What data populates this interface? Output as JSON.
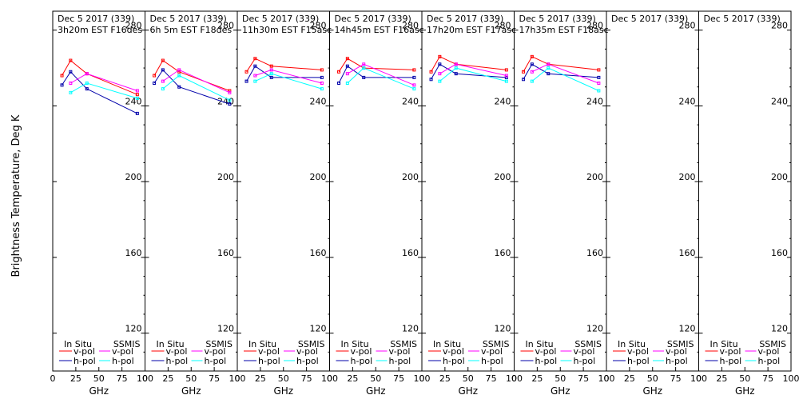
{
  "ylabel": "Brightness Temperature, Deg K",
  "colors": {
    "insitu_v": "#ff0000",
    "insitu_h": "#0000aa",
    "ssmis_v": "#ff00ff",
    "ssmis_h": "#00ffff",
    "axis": "#000000"
  },
  "legend": {
    "insitu": "In Situ",
    "ssmis": "SSMIS",
    "vpol": "v-pol",
    "hpol": "h-pol"
  },
  "chart_data": [
    {
      "type": "line",
      "title": "Dec 5 2017 (339)",
      "subtitle": "3h20m  EST  F16des",
      "xlabel": "GHz",
      "xticks": [
        0,
        25,
        50,
        75,
        100
      ],
      "xlim": [
        0,
        100
      ],
      "ylim": [
        100,
        290
      ],
      "yticks": [
        120,
        160,
        200,
        240,
        280
      ],
      "series": [
        {
          "name": "In Situ v-pol",
          "x": [
            10,
            19.35,
            37,
            91.65
          ],
          "values": [
            256,
            264,
            257,
            246
          ]
        },
        {
          "name": "In Situ h-pol",
          "x": [
            10,
            19.35,
            37,
            91.65
          ],
          "values": [
            251,
            258,
            249,
            236
          ]
        },
        {
          "name": "SSMIS v-pol",
          "x": [
            19.35,
            37,
            91.65
          ],
          "values": [
            252,
            257,
            248
          ]
        },
        {
          "name": "SSMIS h-pol",
          "x": [
            19.35,
            37,
            91.65
          ],
          "values": [
            247,
            252,
            244
          ]
        }
      ]
    },
    {
      "type": "line",
      "title": "Dec 5 2017 (339)",
      "subtitle": "6h 5m  EST  F18des",
      "xlabel": "GHz",
      "xticks": [
        0,
        25,
        50,
        75,
        100
      ],
      "xlim": [
        0,
        100
      ],
      "ylim": [
        100,
        290
      ],
      "yticks": [
        120,
        160,
        200,
        240,
        280
      ],
      "series": [
        {
          "name": "In Situ v-pol",
          "x": [
            10,
            19.35,
            37,
            91.65
          ],
          "values": [
            256,
            264,
            258,
            248
          ]
        },
        {
          "name": "In Situ h-pol",
          "x": [
            10,
            19.35,
            37,
            91.65
          ],
          "values": [
            252,
            259,
            250,
            241
          ]
        },
        {
          "name": "SSMIS v-pol",
          "x": [
            19.35,
            37,
            91.65
          ],
          "values": [
            253,
            259,
            247
          ]
        },
        {
          "name": "SSMIS h-pol",
          "x": [
            19.35,
            37,
            91.65
          ],
          "values": [
            249,
            256,
            243
          ]
        }
      ]
    },
    {
      "type": "line",
      "title": "Dec 5 2017 (339)",
      "subtitle": "11h30m  EST  F15asc",
      "xlabel": "GHz",
      "xticks": [
        0,
        25,
        50,
        75,
        100
      ],
      "xlim": [
        0,
        100
      ],
      "ylim": [
        100,
        290
      ],
      "yticks": [
        120,
        160,
        200,
        240,
        280
      ],
      "series": [
        {
          "name": "In Situ v-pol",
          "x": [
            10,
            19.35,
            37,
            91.65
          ],
          "values": [
            258,
            265,
            261,
            259
          ]
        },
        {
          "name": "In Situ h-pol",
          "x": [
            10,
            19.35,
            37,
            91.65
          ],
          "values": [
            253,
            261,
            255,
            255
          ]
        },
        {
          "name": "SSMIS v-pol",
          "x": [
            19.35,
            37,
            91.65
          ],
          "values": [
            256,
            259,
            252
          ]
        },
        {
          "name": "SSMIS h-pol",
          "x": [
            19.35,
            37,
            91.65
          ],
          "values": [
            253,
            257,
            249
          ]
        }
      ]
    },
    {
      "type": "line",
      "title": "Dec 5 2017 (339)",
      "subtitle": "14h45m  EST  F16asc",
      "xlabel": "GHz",
      "xticks": [
        0,
        25,
        50,
        75,
        100
      ],
      "xlim": [
        0,
        100
      ],
      "ylim": [
        100,
        290
      ],
      "yticks": [
        120,
        160,
        200,
        240,
        280
      ],
      "series": [
        {
          "name": "In Situ v-pol",
          "x": [
            10,
            19.35,
            37,
            91.65
          ],
          "values": [
            258,
            265,
            260,
            259
          ]
        },
        {
          "name": "In Situ h-pol",
          "x": [
            10,
            19.35,
            37,
            91.65
          ],
          "values": [
            252,
            261,
            255,
            255
          ]
        },
        {
          "name": "SSMIS v-pol",
          "x": [
            19.35,
            37,
            91.65
          ],
          "values": [
            257,
            262,
            251
          ]
        },
        {
          "name": "SSMIS h-pol",
          "x": [
            19.35,
            37,
            91.65
          ],
          "values": [
            252,
            260,
            249
          ]
        }
      ]
    },
    {
      "type": "line",
      "title": "Dec 5 2017 (339)",
      "subtitle": "17h20m  EST  F17asc",
      "xlabel": "GHz",
      "xticks": [
        0,
        25,
        50,
        75,
        100
      ],
      "xlim": [
        0,
        100
      ],
      "ylim": [
        100,
        290
      ],
      "yticks": [
        120,
        160,
        200,
        240,
        280
      ],
      "series": [
        {
          "name": "In Situ v-pol",
          "x": [
            10,
            19.35,
            37,
            91.65
          ],
          "values": [
            258,
            266,
            262,
            259
          ]
        },
        {
          "name": "In Situ h-pol",
          "x": [
            10,
            19.35,
            37,
            91.65
          ],
          "values": [
            254,
            262,
            257,
            255
          ]
        },
        {
          "name": "SSMIS v-pol",
          "x": [
            19.35,
            37,
            91.65
          ],
          "values": [
            257,
            262,
            256
          ]
        },
        {
          "name": "SSMIS h-pol",
          "x": [
            19.35,
            37,
            91.65
          ],
          "values": [
            253,
            260,
            253
          ]
        }
      ]
    },
    {
      "type": "line",
      "title": "Dec 5 2017 (339)",
      "subtitle": "17h35m  EST  F18asc",
      "xlabel": "GHz",
      "xticks": [
        0,
        25,
        50,
        75,
        100
      ],
      "xlim": [
        0,
        100
      ],
      "ylim": [
        100,
        290
      ],
      "yticks": [
        120,
        160,
        200,
        240,
        280
      ],
      "series": [
        {
          "name": "In Situ v-pol",
          "x": [
            10,
            19.35,
            37,
            91.65
          ],
          "values": [
            258,
            266,
            262,
            259
          ]
        },
        {
          "name": "In Situ h-pol",
          "x": [
            10,
            19.35,
            37,
            91.65
          ],
          "values": [
            254,
            262,
            257,
            255
          ]
        },
        {
          "name": "SSMIS v-pol",
          "x": [
            19.35,
            37,
            91.65
          ],
          "values": [
            258,
            262,
            252
          ]
        },
        {
          "name": "SSMIS h-pol",
          "x": [
            19.35,
            37,
            91.65
          ],
          "values": [
            253,
            260,
            248
          ]
        }
      ]
    },
    {
      "type": "line",
      "title": "Dec 5 2017 (339)",
      "subtitle": "",
      "xlabel": "GHz",
      "xticks": [
        0,
        25,
        50,
        75,
        100
      ],
      "xlim": [
        0,
        100
      ],
      "ylim": [
        100,
        290
      ],
      "yticks": [
        120,
        160,
        200,
        240,
        280
      ],
      "series": []
    },
    {
      "type": "line",
      "title": "Dec 5 2017 (339)",
      "subtitle": "",
      "xlabel": "GHz",
      "xticks": [
        0,
        25,
        50,
        75,
        100
      ],
      "xlim": [
        0,
        100
      ],
      "ylim": [
        100,
        290
      ],
      "yticks": [
        120,
        160,
        200,
        240,
        280
      ],
      "series": []
    }
  ]
}
